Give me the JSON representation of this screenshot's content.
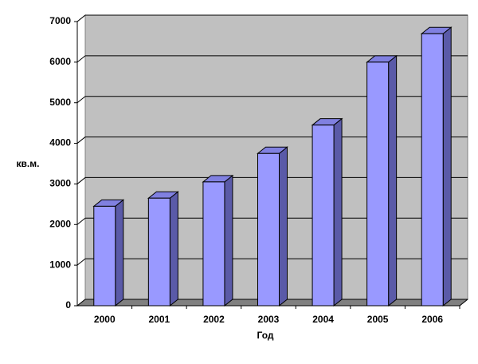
{
  "chart_data": {
    "type": "bar3d",
    "categories": [
      "2000",
      "2001",
      "2002",
      "2003",
      "2004",
      "2005",
      "2006"
    ],
    "values": [
      2450,
      2650,
      3050,
      3750,
      4450,
      6000,
      6700
    ],
    "color": "#9999ff",
    "ylim": [
      0,
      7000
    ],
    "yticks": [
      0,
      1000,
      2000,
      3000,
      4000,
      5000,
      6000,
      7000
    ],
    "grid": true,
    "y_label": "кв.м.",
    "x_label": "Год"
  }
}
